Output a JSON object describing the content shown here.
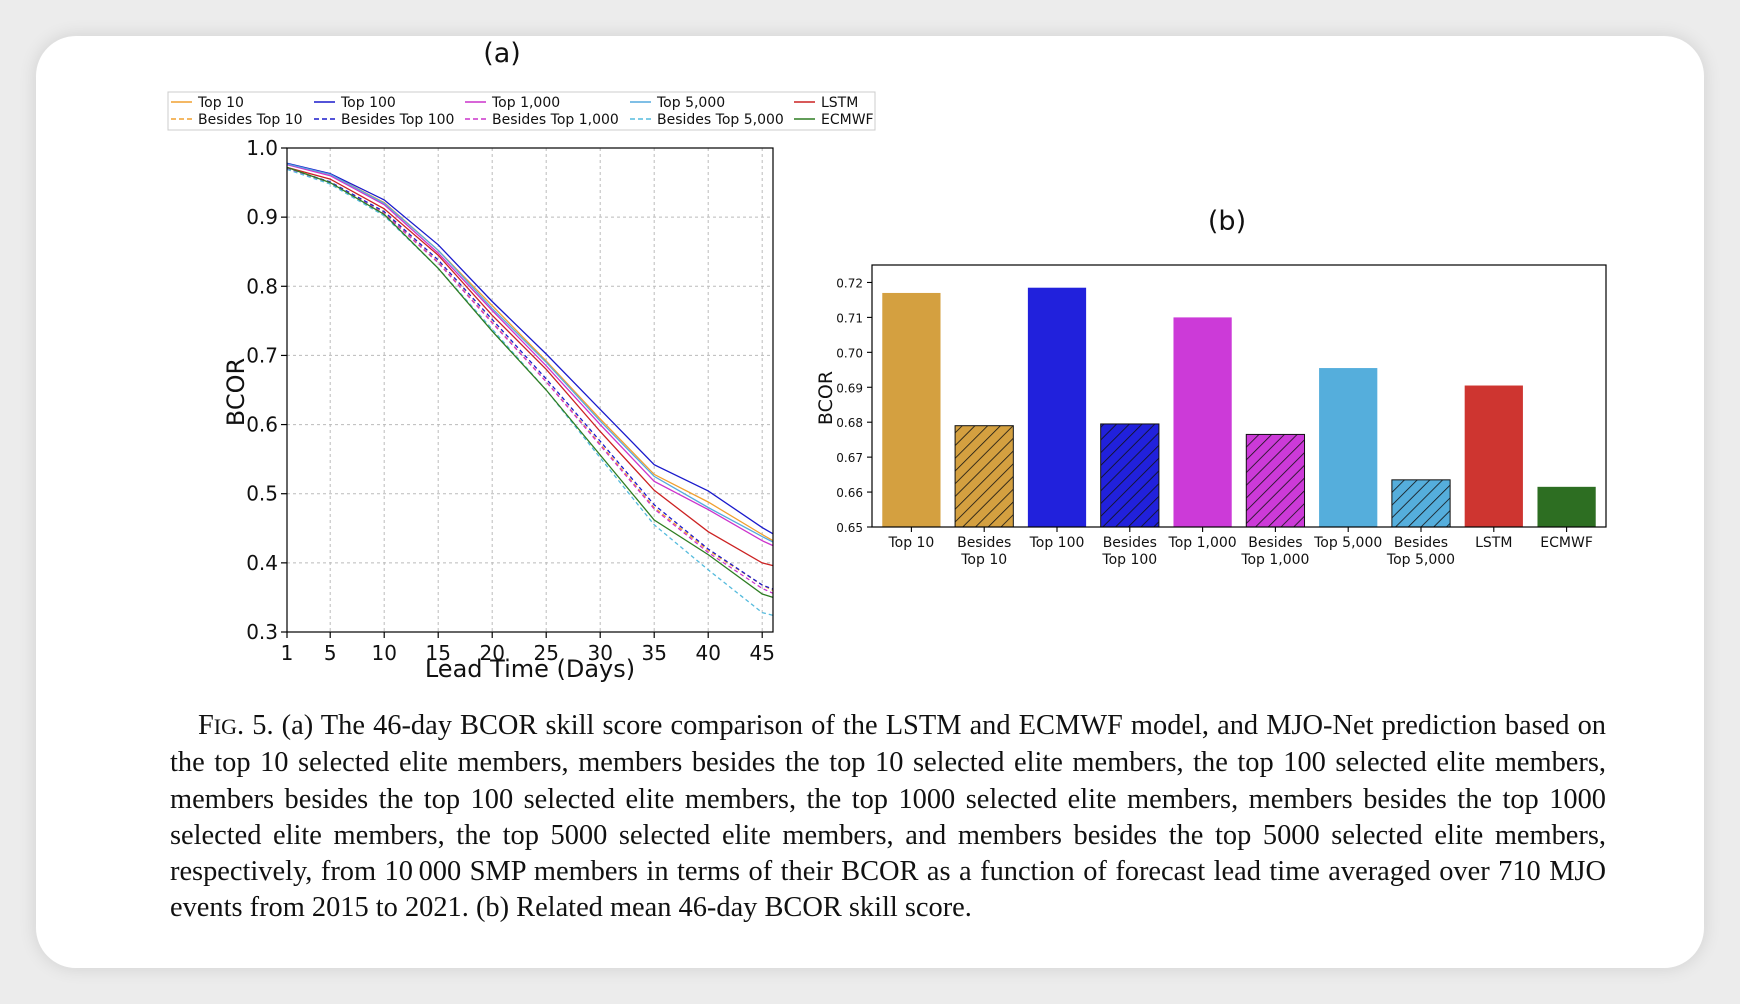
{
  "chart_data": [
    {
      "type": "line",
      "panel_label": "(a)",
      "xlabel": "Lead Time (Days)",
      "ylabel": "BCOR",
      "xlim": [
        1,
        46
      ],
      "ylim": [
        0.3,
        1.0
      ],
      "xticks": [
        "1",
        "5",
        "10",
        "15",
        "20",
        "25",
        "30",
        "35",
        "40",
        "45"
      ],
      "yticks": [
        "0.3",
        "0.4",
        "0.5",
        "0.6",
        "0.7",
        "0.8",
        "0.9",
        "1.0"
      ],
      "grid": true,
      "legend_position": "top",
      "x": [
        1,
        5,
        10,
        15,
        20,
        25,
        30,
        35,
        40,
        45,
        46
      ],
      "series": [
        {
          "name": "Top 10",
          "color": "#f0a030",
          "dash": "solid",
          "values": [
            0.977,
            0.962,
            0.921,
            0.852,
            0.772,
            0.692,
            0.608,
            0.528,
            0.488,
            0.441,
            0.432
          ]
        },
        {
          "name": "Top 100",
          "color": "#1a1acc",
          "dash": "solid",
          "values": [
            0.978,
            0.963,
            0.925,
            0.86,
            0.778,
            0.702,
            0.622,
            0.542,
            0.504,
            0.451,
            0.442
          ]
        },
        {
          "name": "Top 1,000",
          "color": "#cc33cc",
          "dash": "solid",
          "values": [
            0.976,
            0.96,
            0.918,
            0.848,
            0.765,
            0.685,
            0.6,
            0.518,
            0.477,
            0.432,
            0.425
          ]
        },
        {
          "name": "Top 5,000",
          "color": "#55aadd",
          "dash": "solid",
          "values": [
            0.977,
            0.962,
            0.92,
            0.852,
            0.768,
            0.69,
            0.605,
            0.525,
            0.48,
            0.438,
            0.43
          ]
        },
        {
          "name": "LSTM",
          "color": "#cc2222",
          "dash": "solid",
          "values": [
            0.972,
            0.955,
            0.912,
            0.845,
            0.758,
            0.68,
            0.59,
            0.505,
            0.445,
            0.4,
            0.396
          ]
        },
        {
          "name": "Besides Top 10",
          "color": "#f0a030",
          "dash": "dashed",
          "values": [
            0.97,
            0.95,
            0.906,
            0.835,
            0.748,
            0.662,
            0.572,
            0.48,
            0.418,
            0.368,
            0.36
          ]
        },
        {
          "name": "Besides Top 100",
          "color": "#1a1acc",
          "dash": "dashed",
          "values": [
            0.971,
            0.951,
            0.908,
            0.838,
            0.752,
            0.666,
            0.576,
            0.484,
            0.42,
            0.368,
            0.362
          ]
        },
        {
          "name": "Besides Top 1,000",
          "color": "#cc33cc",
          "dash": "dashed",
          "values": [
            0.97,
            0.95,
            0.905,
            0.834,
            0.747,
            0.662,
            0.57,
            0.478,
            0.415,
            0.363,
            0.356
          ]
        },
        {
          "name": "Besides Top 5,000",
          "color": "#55bbdd",
          "dash": "dashed",
          "values": [
            0.969,
            0.948,
            0.902,
            0.826,
            0.738,
            0.65,
            0.552,
            0.455,
            0.39,
            0.328,
            0.324
          ]
        },
        {
          "name": "ECMWF",
          "color": "#2e7d22",
          "dash": "solid",
          "values": [
            0.972,
            0.95,
            0.904,
            0.826,
            0.735,
            0.65,
            0.556,
            0.462,
            0.412,
            0.355,
            0.35
          ]
        }
      ]
    },
    {
      "type": "bar",
      "panel_label": "(b)",
      "ylabel": "BCOR",
      "ylim": [
        0.65,
        0.725
      ],
      "yticks": [
        "0.65",
        "0.66",
        "0.67",
        "0.68",
        "0.69",
        "0.70",
        "0.71",
        "0.72"
      ],
      "grid": false,
      "categories": [
        "Top 10",
        "Besides\nTop 10",
        "Top 100",
        "Besides\nTop 100",
        "Top 1,000",
        "Besides\nTop 1,000",
        "Top 5,000",
        "Besides\nTop 5,000",
        "LSTM",
        "ECMWF"
      ],
      "values": [
        0.717,
        0.679,
        0.7185,
        0.6795,
        0.71,
        0.6765,
        0.6955,
        0.6635,
        0.6905,
        0.6615
      ],
      "colors": [
        "#d4a040",
        "#d4a040",
        "#2121dc",
        "#2121dc",
        "#cc3ad8",
        "#cc3ad8",
        "#55aedc",
        "#55aedc",
        "#ce3530",
        "#2d6e22"
      ],
      "hatched": [
        false,
        true,
        false,
        true,
        false,
        true,
        false,
        true,
        false,
        false
      ]
    }
  ],
  "caption": {
    "fig_label": "Fig",
    "fig_label_rest": ". 5.",
    "text": " (a) The 46-day BCOR skill score comparison of the LSTM and ECMWF model, and MJO-Net prediction based on the top 10 selected elite members, members besides the top 10 selected elite members, the top 100 selected elite members, members besides the top 100 selected elite members, the top 1000 selected elite members, members besides the top 1000 selected elite members, the top 5000 selected elite members, and members besides the top 5000 selected elite members, respectively, from 10 000 SMP members in terms of their BCOR as a function of forecast lead time averaged over 710 MJO events from 2015 to 2021. (b) Related mean 46-day BCOR skill score."
  }
}
